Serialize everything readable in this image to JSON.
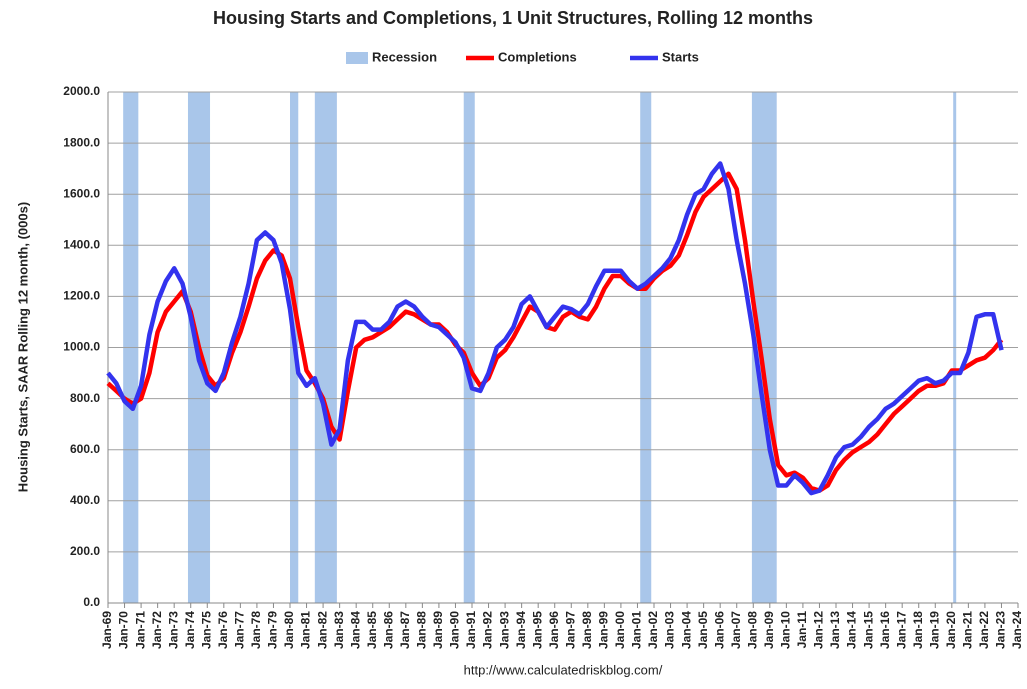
{
  "chart_data": {
    "type": "line",
    "title": "Housing Starts and Completions, 1 Unit Structures, Rolling 12 months",
    "y_label": "Housing Starts, SAAR Rolling 12 month, (000s)",
    "source": "http://www.calculatedriskblog.com/",
    "grid": true,
    "legend": "top",
    "ylim": [
      0,
      2000
    ],
    "yticks": [
      {
        "value": 0,
        "label": "0.0"
      },
      {
        "value": 200,
        "label": "200.0"
      },
      {
        "value": 400,
        "label": "400.0"
      },
      {
        "value": 600,
        "label": "600.0"
      },
      {
        "value": 800,
        "label": "800.0"
      },
      {
        "value": 1000,
        "label": "1000.0"
      },
      {
        "value": 1200,
        "label": "1200.0"
      },
      {
        "value": 1400,
        "label": "1400.0"
      },
      {
        "value": 1600,
        "label": "1600.0"
      },
      {
        "value": 1800,
        "label": "1800.0"
      },
      {
        "value": 2000,
        "label": "2000.0"
      }
    ],
    "xlim": [
      "1969-01",
      "2024-01"
    ],
    "xticks": [
      {
        "value": "1969-01",
        "label": "Jan-69"
      },
      {
        "value": "1970-01",
        "label": "Jan-70"
      },
      {
        "value": "1971-01",
        "label": "Jan-71"
      },
      {
        "value": "1972-01",
        "label": "Jan-72"
      },
      {
        "value": "1973-01",
        "label": "Jan-73"
      },
      {
        "value": "1974-01",
        "label": "Jan-74"
      },
      {
        "value": "1975-01",
        "label": "Jan-75"
      },
      {
        "value": "1976-01",
        "label": "Jan-76"
      },
      {
        "value": "1977-01",
        "label": "Jan-77"
      },
      {
        "value": "1978-01",
        "label": "Jan-78"
      },
      {
        "value": "1979-01",
        "label": "Jan-79"
      },
      {
        "value": "1980-01",
        "label": "Jan-80"
      },
      {
        "value": "1981-01",
        "label": "Jan-81"
      },
      {
        "value": "1982-01",
        "label": "Jan-82"
      },
      {
        "value": "1983-01",
        "label": "Jan-83"
      },
      {
        "value": "1984-01",
        "label": "Jan-84"
      },
      {
        "value": "1985-01",
        "label": "Jan-85"
      },
      {
        "value": "1986-01",
        "label": "Jan-86"
      },
      {
        "value": "1987-01",
        "label": "Jan-87"
      },
      {
        "value": "1988-01",
        "label": "Jan-88"
      },
      {
        "value": "1989-01",
        "label": "Jan-89"
      },
      {
        "value": "1990-01",
        "label": "Jan-90"
      },
      {
        "value": "1991-01",
        "label": "Jan-91"
      },
      {
        "value": "1992-01",
        "label": "Jan-92"
      },
      {
        "value": "1993-01",
        "label": "Jan-93"
      },
      {
        "value": "1994-01",
        "label": "Jan-94"
      },
      {
        "value": "1995-01",
        "label": "Jan-95"
      },
      {
        "value": "1996-01",
        "label": "Jan-96"
      },
      {
        "value": "1997-01",
        "label": "Jan-97"
      },
      {
        "value": "1998-01",
        "label": "Jan-98"
      },
      {
        "value": "1999-01",
        "label": "Jan-99"
      },
      {
        "value": "2000-01",
        "label": "Jan-00"
      },
      {
        "value": "2001-01",
        "label": "Jan-01"
      },
      {
        "value": "2002-01",
        "label": "Jan-02"
      },
      {
        "value": "2003-01",
        "label": "Jan-03"
      },
      {
        "value": "2004-01",
        "label": "Jan-04"
      },
      {
        "value": "2005-01",
        "label": "Jan-05"
      },
      {
        "value": "2006-01",
        "label": "Jan-06"
      },
      {
        "value": "2007-01",
        "label": "Jan-07"
      },
      {
        "value": "2008-01",
        "label": "Jan-08"
      },
      {
        "value": "2009-01",
        "label": "Jan-09"
      },
      {
        "value": "2010-01",
        "label": "Jan-10"
      },
      {
        "value": "2011-01",
        "label": "Jan-11"
      },
      {
        "value": "2012-01",
        "label": "Jan-12"
      },
      {
        "value": "2013-01",
        "label": "Jan-13"
      },
      {
        "value": "2014-01",
        "label": "Jan-14"
      },
      {
        "value": "2015-01",
        "label": "Jan-15"
      },
      {
        "value": "2016-01",
        "label": "Jan-16"
      },
      {
        "value": "2017-01",
        "label": "Jan-17"
      },
      {
        "value": "2018-01",
        "label": "Jan-18"
      },
      {
        "value": "2019-01",
        "label": "Jan-19"
      },
      {
        "value": "2020-01",
        "label": "Jan-20"
      },
      {
        "value": "2021-01",
        "label": "Jan-21"
      },
      {
        "value": "2022-01",
        "label": "Jan-22"
      },
      {
        "value": "2023-01",
        "label": "Jan-23"
      },
      {
        "value": "2024-01",
        "label": "Jan-24"
      }
    ],
    "recessions": {
      "name": "Recession",
      "color": "#a9c6ea",
      "periods": [
        [
          "1969-12",
          "1970-11"
        ],
        [
          "1973-11",
          "1975-03"
        ],
        [
          "1980-01",
          "1980-07"
        ],
        [
          "1981-07",
          "1982-11"
        ],
        [
          "1990-07",
          "1991-03"
        ],
        [
          "2001-03",
          "2001-11"
        ],
        [
          "2007-12",
          "2009-06"
        ],
        [
          "2020-02",
          "2020-04"
        ]
      ]
    },
    "x": [
      "1969-01",
      "1969-07",
      "1970-01",
      "1970-07",
      "1971-01",
      "1971-07",
      "1972-01",
      "1972-07",
      "1973-01",
      "1973-07",
      "1974-01",
      "1974-07",
      "1975-01",
      "1975-07",
      "1976-01",
      "1976-07",
      "1977-01",
      "1977-07",
      "1978-01",
      "1978-07",
      "1979-01",
      "1979-07",
      "1980-01",
      "1980-07",
      "1981-01",
      "1981-07",
      "1982-01",
      "1982-07",
      "1983-01",
      "1983-07",
      "1984-01",
      "1984-07",
      "1985-01",
      "1985-07",
      "1986-01",
      "1986-07",
      "1987-01",
      "1987-07",
      "1988-01",
      "1988-07",
      "1989-01",
      "1989-07",
      "1990-01",
      "1990-07",
      "1991-01",
      "1991-07",
      "1992-01",
      "1992-07",
      "1993-01",
      "1993-07",
      "1994-01",
      "1994-07",
      "1995-01",
      "1995-07",
      "1996-01",
      "1996-07",
      "1997-01",
      "1997-07",
      "1998-01",
      "1998-07",
      "1999-01",
      "1999-07",
      "2000-01",
      "2000-07",
      "2001-01",
      "2001-07",
      "2002-01",
      "2002-07",
      "2003-01",
      "2003-07",
      "2004-01",
      "2004-07",
      "2005-01",
      "2005-07",
      "2006-01",
      "2006-07",
      "2007-01",
      "2007-07",
      "2008-01",
      "2008-07",
      "2009-01",
      "2009-07",
      "2010-01",
      "2010-07",
      "2011-01",
      "2011-07",
      "2012-01",
      "2012-07",
      "2013-01",
      "2013-07",
      "2014-01",
      "2014-07",
      "2015-01",
      "2015-07",
      "2016-01",
      "2016-07",
      "2017-01",
      "2017-07",
      "2018-01",
      "2018-07",
      "2019-01",
      "2019-07",
      "2020-01",
      "2020-07",
      "2021-01",
      "2021-07",
      "2022-01",
      "2022-07",
      "2023-01"
    ],
    "series": [
      {
        "name": "Completions",
        "color": "#ff0000",
        "values": [
          860,
          830,
          800,
          780,
          800,
          900,
          1060,
          1140,
          1180,
          1220,
          1140,
          1000,
          890,
          850,
          880,
          980,
          1060,
          1160,
          1270,
          1340,
          1380,
          1360,
          1270,
          1080,
          910,
          860,
          800,
          690,
          640,
          830,
          1000,
          1030,
          1040,
          1060,
          1080,
          1110,
          1140,
          1130,
          1110,
          1090,
          1090,
          1060,
          1010,
          980,
          900,
          850,
          880,
          960,
          990,
          1040,
          1100,
          1160,
          1140,
          1080,
          1070,
          1120,
          1140,
          1120,
          1110,
          1160,
          1230,
          1280,
          1280,
          1250,
          1230,
          1230,
          1270,
          1300,
          1320,
          1360,
          1440,
          1530,
          1590,
          1620,
          1650,
          1680,
          1620,
          1420,
          1180,
          960,
          720,
          540,
          500,
          510,
          490,
          450,
          440,
          460,
          520,
          560,
          590,
          610,
          630,
          660,
          700,
          740,
          770,
          800,
          830,
          850,
          850,
          860,
          910,
          910,
          930,
          950,
          960,
          990,
          1030
        ]
      },
      {
        "name": "Starts",
        "color": "#3333ee",
        "values": [
          900,
          860,
          790,
          760,
          850,
          1050,
          1180,
          1260,
          1310,
          1250,
          1120,
          950,
          860,
          830,
          900,
          1020,
          1120,
          1250,
          1420,
          1450,
          1420,
          1330,
          1150,
          900,
          850,
          880,
          780,
          620,
          680,
          950,
          1100,
          1100,
          1070,
          1070,
          1100,
          1160,
          1180,
          1160,
          1120,
          1090,
          1080,
          1050,
          1020,
          960,
          840,
          830,
          900,
          1000,
          1030,
          1080,
          1170,
          1200,
          1140,
          1080,
          1120,
          1160,
          1150,
          1130,
          1170,
          1240,
          1300,
          1300,
          1300,
          1260,
          1230,
          1250,
          1280,
          1310,
          1350,
          1420,
          1520,
          1600,
          1620,
          1680,
          1720,
          1620,
          1420,
          1250,
          1050,
          820,
          600,
          460,
          460,
          500,
          470,
          430,
          440,
          500,
          570,
          610,
          620,
          650,
          690,
          720,
          760,
          780,
          810,
          840,
          870,
          880,
          860,
          870,
          900,
          900,
          980,
          1120,
          1130,
          1130,
          990
        ]
      }
    ]
  }
}
